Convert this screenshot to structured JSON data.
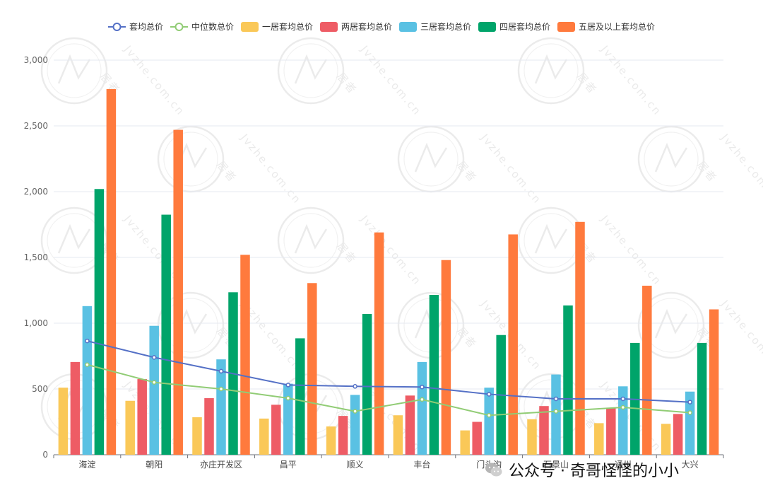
{
  "chart_data": {
    "type": "bar",
    "categories": [
      "海淀",
      "朝阳",
      "亦庄开发区",
      "昌平",
      "顺义",
      "丰台",
      "门头沟",
      "石景山",
      "通州",
      "大兴"
    ],
    "ylim": [
      0,
      3000
    ],
    "yticks": [
      0,
      500,
      1000,
      1500,
      2000,
      2500,
      3000
    ],
    "ytick_labels": [
      "0",
      "500",
      "1,000",
      "1,500",
      "2,000",
      "2,500",
      "3,000"
    ],
    "grid": true,
    "legend_position": "top-center",
    "series": [
      {
        "name": "套均总价",
        "kind": "line",
        "color": "#5470c6",
        "values": [
          865,
          740,
          635,
          530,
          520,
          515,
          460,
          425,
          425,
          400
        ]
      },
      {
        "name": "中位数总价",
        "kind": "line",
        "color": "#91cc75",
        "values": [
          685,
          550,
          500,
          430,
          330,
          420,
          300,
          330,
          360,
          320
        ]
      },
      {
        "name": "一居套均总价",
        "kind": "bar",
        "color": "#fac858",
        "values": [
          510,
          410,
          285,
          275,
          215,
          300,
          185,
          270,
          240,
          235
        ]
      },
      {
        "name": "两居套均总价",
        "kind": "bar",
        "color": "#ee5c65",
        "values": [
          705,
          575,
          430,
          380,
          295,
          450,
          250,
          370,
          355,
          310
        ]
      },
      {
        "name": "三居套均总价",
        "kind": "bar",
        "color": "#5ac1e3",
        "values": [
          1130,
          980,
          725,
          540,
          455,
          705,
          510,
          610,
          520,
          480
        ]
      },
      {
        "name": "四居套均总价",
        "kind": "bar",
        "color": "#00a46a",
        "values": [
          2020,
          1825,
          1235,
          885,
          1070,
          1215,
          910,
          1135,
          850,
          850
        ]
      },
      {
        "name": "五居及以上套均总价",
        "kind": "bar",
        "color": "#ff7a3d",
        "values": [
          2780,
          2470,
          1520,
          1305,
          1690,
          1480,
          1675,
          1770,
          1285,
          1105
        ]
      }
    ]
  },
  "watermark": {
    "url_text": "Jvzhe.com.cn",
    "brand_text": "居者"
  },
  "caption": {
    "text": "公众号 · 奇哥怪怪的小小",
    "icon": "wechat-icon"
  }
}
